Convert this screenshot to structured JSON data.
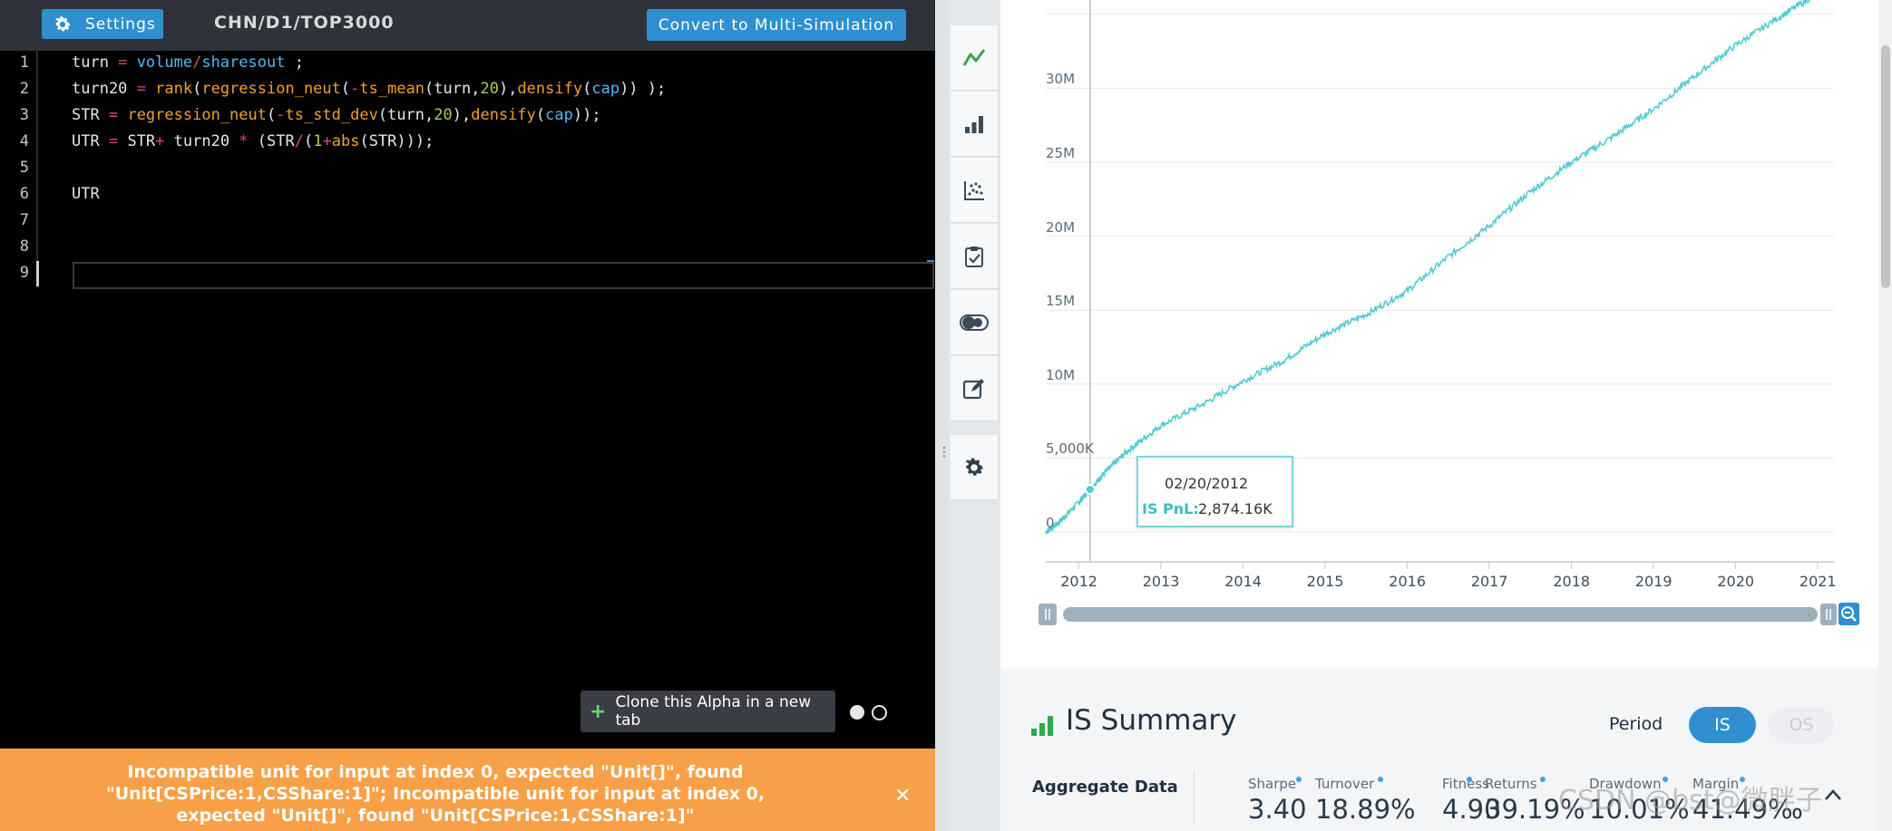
{
  "toolbar": {
    "settings_label": "Settings",
    "path": "CHN/D1/TOP3000",
    "convert_label": "Convert to Multi-Simulation"
  },
  "editor": {
    "line_numbers": [
      "1",
      "2",
      "3",
      "4",
      "5",
      "6",
      "7",
      "8",
      "9"
    ],
    "lines": [
      "turn = volume/sharesout ;",
      "turn20 = rank(regression_neut(-ts_mean(turn,20),densify(cap)) );",
      "STR = regression_neut(-ts_std_dev(turn,20),densify(cap));",
      "UTR = STR+ turn20 * (STR/(1+abs(STR)));",
      "",
      "UTR",
      "",
      "",
      ""
    ],
    "clone_label": "Clone this Alpha in a new tab"
  },
  "error": {
    "message": "Incompatible unit for input at index 0, expected \"Unit[]\", found \"Unit[CSPrice:1,CSShare:1]\"; Incompatible unit for input at index 0, expected \"Unit[]\", found \"Unit[CSPrice:1,CSShare:1]\""
  },
  "sidebar_icons": [
    "line-chart-icon",
    "bar-chart-icon",
    "scatter-chart-icon",
    "clipboard-check-icon",
    "toggle-compare-icon",
    "edit-note-icon",
    "gear-icon"
  ],
  "chart_data": {
    "type": "line",
    "series": [
      {
        "name": "IS PnL",
        "color": "#4fcbd0"
      }
    ],
    "x_ticks": [
      "2012",
      "2013",
      "2014",
      "2015",
      "2016",
      "2017",
      "2018",
      "2019",
      "2020",
      "2021"
    ],
    "y_ticks": [
      "0",
      "5,000K",
      "10M",
      "15M",
      "20M",
      "25M",
      "30M"
    ],
    "xlim": [
      2011.6,
      2021.2
    ],
    "ylim": [
      -500000,
      35000000
    ],
    "points": [
      [
        2011.6,
        0
      ],
      [
        2011.75,
        600000
      ],
      [
        2012.0,
        2000000
      ],
      [
        2012.14,
        2874160
      ],
      [
        2012.3,
        3900000
      ],
      [
        2012.6,
        5500000
      ],
      [
        2013.0,
        7200000
      ],
      [
        2013.5,
        8600000
      ],
      [
        2014.0,
        10200000
      ],
      [
        2014.5,
        11600000
      ],
      [
        2015.0,
        13400000
      ],
      [
        2015.5,
        14700000
      ],
      [
        2016.0,
        16300000
      ],
      [
        2016.5,
        18600000
      ],
      [
        2017.0,
        20700000
      ],
      [
        2017.5,
        23000000
      ],
      [
        2018.0,
        25000000
      ],
      [
        2018.5,
        26700000
      ],
      [
        2019.0,
        28600000
      ],
      [
        2019.5,
        30800000
      ],
      [
        2020.0,
        32900000
      ],
      [
        2020.5,
        34700000
      ],
      [
        2021.0,
        36400000
      ]
    ],
    "grid": true,
    "tooltip": {
      "date": "02/20/2012",
      "label": "IS PnL:",
      "value": "2,874.16K",
      "x": 2012.14,
      "y": 2874160
    }
  },
  "summary": {
    "title": "IS Summary",
    "period_label": "Period",
    "period_options": [
      "IS",
      "OS"
    ],
    "period_selected": "IS",
    "aggregate_label": "Aggregate Data",
    "metrics": [
      {
        "name": "Sharpe",
        "value": "3.40"
      },
      {
        "name": "Turnover",
        "value": "18.89%"
      },
      {
        "name": "Fitness",
        "value": "4.90"
      },
      {
        "name": "Returns",
        "value": "39.19%"
      },
      {
        "name": "Drawdown",
        "value": "10.01%"
      },
      {
        "name": "Margin",
        "value": "41.49‰"
      }
    ],
    "watermark": "CSDN @bst@微胖子"
  }
}
